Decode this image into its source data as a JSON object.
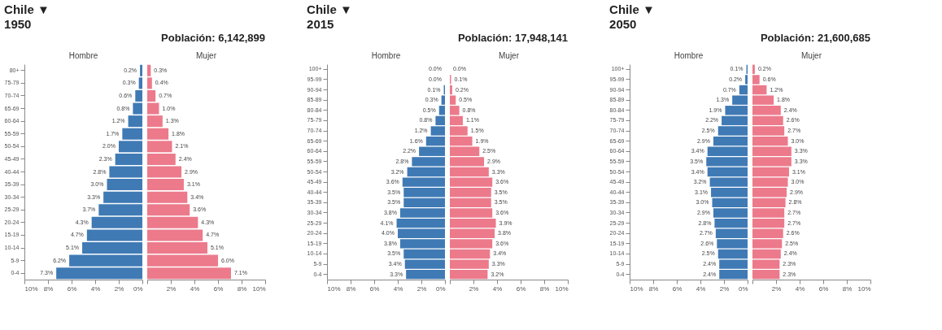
{
  "chart_data": [
    {
      "type": "bar",
      "orientation": "horizontal",
      "title": "Chile ▼",
      "subtitle": "1950",
      "categories": [
        "80+",
        "75-79",
        "70-74",
        "65-69",
        "60-64",
        "55-59",
        "50-54",
        "45-49",
        "40-44",
        "35-39",
        "30-34",
        "25-29",
        "20-24",
        "15-19",
        "10-14",
        "5-9",
        "0-4"
      ],
      "xlim": [
        10,
        0
      ],
      "xticks": [
        {
          "value": 10,
          "label": "10%"
        },
        {
          "value": 8,
          "label": "8%"
        },
        {
          "value": 6,
          "label": "6%"
        },
        {
          "value": 4,
          "label": "4%"
        },
        {
          "value": 2,
          "label": "2%"
        },
        {
          "value": 0,
          "label": "0%"
        }
      ],
      "series": [
        {
          "name": "Hombre",
          "color": "#3f7ab5",
          "values": [
            0.2,
            0.3,
            0.6,
            0.8,
            1.2,
            1.7,
            2.0,
            2.3,
            2.8,
            3.0,
            3.3,
            3.7,
            4.3,
            4.7,
            5.1,
            6.2,
            7.3
          ],
          "value_labels": [
            "0.2%",
            "0.3%",
            "0.6%",
            "0.8%",
            "1.2%",
            "1.7%",
            "2.0%",
            "2.3%",
            "2.8%",
            "3.0%",
            "3.3%",
            "3.7%",
            "4.3%",
            "4.7%",
            "5.1%",
            "6.2%",
            "7.3%"
          ]
        }
      ]
    },
    {
      "type": "bar",
      "orientation": "horizontal",
      "annotations": [
        "Población: 6,142,899"
      ],
      "tick_labels": "x",
      "categories": [
        "80+",
        "75-79",
        "70-74",
        "65-69",
        "60-64",
        "55-59",
        "50-54",
        "45-49",
        "40-44",
        "35-39",
        "30-34",
        "25-29",
        "20-24",
        "15-19",
        "10-14",
        "5-9",
        "0-4"
      ],
      "xlim": [
        0,
        10
      ],
      "xticks": [
        {
          "value": 0,
          "label": null
        },
        {
          "value": 2,
          "label": "2%"
        },
        {
          "value": 4,
          "label": "4%"
        },
        {
          "value": 6,
          "label": "6%"
        },
        {
          "value": 8,
          "label": "8%"
        },
        {
          "value": 10,
          "label": "10%"
        }
      ],
      "series": [
        {
          "name": "Mujer",
          "color": "#ec7a8b",
          "values": [
            0.3,
            0.4,
            0.7,
            1.0,
            1.3,
            1.8,
            2.1,
            2.4,
            2.9,
            3.1,
            3.4,
            3.6,
            4.3,
            4.7,
            5.1,
            6.0,
            7.1
          ],
          "value_labels": [
            "0.3%",
            "0.4%",
            "0.7%",
            "1.0%",
            "1.3%",
            "1.8%",
            "2.1%",
            "2.4%",
            "2.9%",
            "3.1%",
            "3.4%",
            "3.6%",
            "4.3%",
            "4.7%",
            "5.1%",
            "6.0%",
            "7.1%"
          ]
        }
      ]
    },
    {
      "type": "bar",
      "orientation": "horizontal",
      "title": "Chile ▼",
      "subtitle": "2015",
      "categories": [
        "100+",
        "95-99",
        "90-94",
        "85-89",
        "80-84",
        "75-79",
        "70-74",
        "65-69",
        "60-64",
        "55-59",
        "50-54",
        "45-49",
        "40-44",
        "35-39",
        "30-34",
        "25-29",
        "20-24",
        "15-19",
        "10-14",
        "5-9",
        "0-4"
      ],
      "xlim": [
        10,
        0
      ],
      "xticks": [
        {
          "value": 10,
          "label": "10%"
        },
        {
          "value": 8,
          "label": "8%"
        },
        {
          "value": 6,
          "label": "6%"
        },
        {
          "value": 4,
          "label": "4%"
        },
        {
          "value": 2,
          "label": "2%"
        },
        {
          "value": 0,
          "label": "0%"
        }
      ],
      "series": [
        {
          "name": "Hombre",
          "color": "#3f7ab5",
          "values": [
            0.0,
            0.0,
            0.1,
            0.3,
            0.5,
            0.8,
            1.2,
            1.6,
            2.2,
            2.8,
            3.2,
            3.6,
            3.5,
            3.5,
            3.8,
            4.1,
            4.0,
            3.8,
            3.5,
            3.4,
            3.3
          ],
          "value_labels": [
            "0.0%",
            "0.0%",
            "0.1%",
            "0.3%",
            "0.5%",
            "0.8%",
            "1.2%",
            "1.6%",
            "2.2%",
            "2.8%",
            "3.2%",
            "3.6%",
            "3.5%",
            "3.5%",
            "3.8%",
            "4.1%",
            "4.0%",
            "3.8%",
            "3.5%",
            "3.4%",
            "3.3%"
          ]
        }
      ]
    },
    {
      "type": "bar",
      "orientation": "horizontal",
      "annotations": [
        "Población: 17,948,141"
      ],
      "tick_labels": "x",
      "categories": [
        "100+",
        "95-99",
        "90-94",
        "85-89",
        "80-84",
        "75-79",
        "70-74",
        "65-69",
        "60-64",
        "55-59",
        "50-54",
        "45-49",
        "40-44",
        "35-39",
        "30-34",
        "25-29",
        "20-24",
        "15-19",
        "10-14",
        "5-9",
        "0-4"
      ],
      "xlim": [
        0,
        10
      ],
      "xticks": [
        {
          "value": 0,
          "label": null
        },
        {
          "value": 2,
          "label": "2%"
        },
        {
          "value": 4,
          "label": "4%"
        },
        {
          "value": 6,
          "label": "6%"
        },
        {
          "value": 8,
          "label": "8%"
        },
        {
          "value": 10,
          "label": "10%"
        }
      ],
      "series": [
        {
          "name": "Mujer",
          "color": "#ec7a8b",
          "values": [
            0.0,
            0.1,
            0.2,
            0.5,
            0.8,
            1.1,
            1.5,
            1.9,
            2.5,
            2.9,
            3.3,
            3.6,
            3.5,
            3.5,
            3.6,
            3.9,
            3.8,
            3.6,
            3.4,
            3.3,
            3.2
          ],
          "value_labels": [
            "0.0%",
            "0.1%",
            "0.2%",
            "0.5%",
            "0.8%",
            "1.1%",
            "1.5%",
            "1.9%",
            "2.5%",
            "2.9%",
            "3.3%",
            "3.6%",
            "3.5%",
            "3.5%",
            "3.6%",
            "3.9%",
            "3.8%",
            "3.6%",
            "3.4%",
            "3.3%",
            "3.2%"
          ]
        }
      ]
    },
    {
      "type": "bar",
      "orientation": "horizontal",
      "title": "Chile ▼",
      "subtitle": "2050",
      "categories": [
        "100+",
        "95-99",
        "90-94",
        "85-89",
        "80-84",
        "75-79",
        "70-74",
        "65-69",
        "60-64",
        "55-59",
        "50-54",
        "45-49",
        "40-44",
        "35-39",
        "30-34",
        "25-29",
        "20-24",
        "15-19",
        "10-14",
        "5-9",
        "0-4"
      ],
      "xlim": [
        10,
        0
      ],
      "xticks": [
        {
          "value": 10,
          "label": "10%"
        },
        {
          "value": 8,
          "label": "8%"
        },
        {
          "value": 6,
          "label": "6%"
        },
        {
          "value": 4,
          "label": "4%"
        },
        {
          "value": 2,
          "label": "2%"
        },
        {
          "value": 0,
          "label": "0%"
        }
      ],
      "series": [
        {
          "name": "Hombre",
          "color": "#3f7ab5",
          "values": [
            0.1,
            0.2,
            0.7,
            1.3,
            1.9,
            2.2,
            2.5,
            2.9,
            3.4,
            3.5,
            3.4,
            3.2,
            3.1,
            3.0,
            2.9,
            2.8,
            2.7,
            2.6,
            2.5,
            2.4,
            2.4
          ],
          "value_labels": [
            "0.1%",
            "0.2%",
            "0.7%",
            "1.3%",
            "1.9%",
            "2.2%",
            "2.5%",
            "2.9%",
            "3.4%",
            "3.5%",
            "3.4%",
            "3.2%",
            "3.1%",
            "3.0%",
            "2.9%",
            "2.8%",
            "2.7%",
            "2.6%",
            "2.5%",
            "2.4%",
            "2.4%"
          ]
        }
      ]
    },
    {
      "type": "bar",
      "orientation": "horizontal",
      "annotations": [
        "Población: 21,600,685"
      ],
      "tick_labels": "x",
      "categories": [
        "100+",
        "95-99",
        "90-94",
        "85-89",
        "80-84",
        "75-79",
        "70-74",
        "65-69",
        "60-64",
        "55-59",
        "50-54",
        "45-49",
        "40-44",
        "35-39",
        "30-34",
        "25-29",
        "20-24",
        "15-19",
        "10-14",
        "5-9",
        "0-4"
      ],
      "xlim": [
        0,
        10
      ],
      "xticks": [
        {
          "value": 0,
          "label": null
        },
        {
          "value": 2,
          "label": "2%"
        },
        {
          "value": 4,
          "label": "4%"
        },
        {
          "value": 6,
          "label": "6%"
        },
        {
          "value": 8,
          "label": "8%"
        },
        {
          "value": 10,
          "label": "10%"
        }
      ],
      "series": [
        {
          "name": "Mujer",
          "color": "#ec7a8b",
          "values": [
            0.2,
            0.6,
            1.2,
            1.8,
            2.4,
            2.6,
            2.7,
            3.0,
            3.3,
            3.3,
            3.1,
            3.0,
            2.9,
            2.8,
            2.7,
            2.7,
            2.6,
            2.5,
            2.4,
            2.3,
            2.3
          ],
          "value_labels": [
            "0.2%",
            "0.6%",
            "1.2%",
            "1.8%",
            "2.4%",
            "2.6%",
            "2.7%",
            "3.0%",
            "3.3%",
            "3.3%",
            "3.1%",
            "3.0%",
            "2.9%",
            "2.8%",
            "2.7%",
            "2.7%",
            "2.6%",
            "2.5%",
            "2.4%",
            "2.3%",
            "2.3%"
          ]
        }
      ]
    }
  ]
}
